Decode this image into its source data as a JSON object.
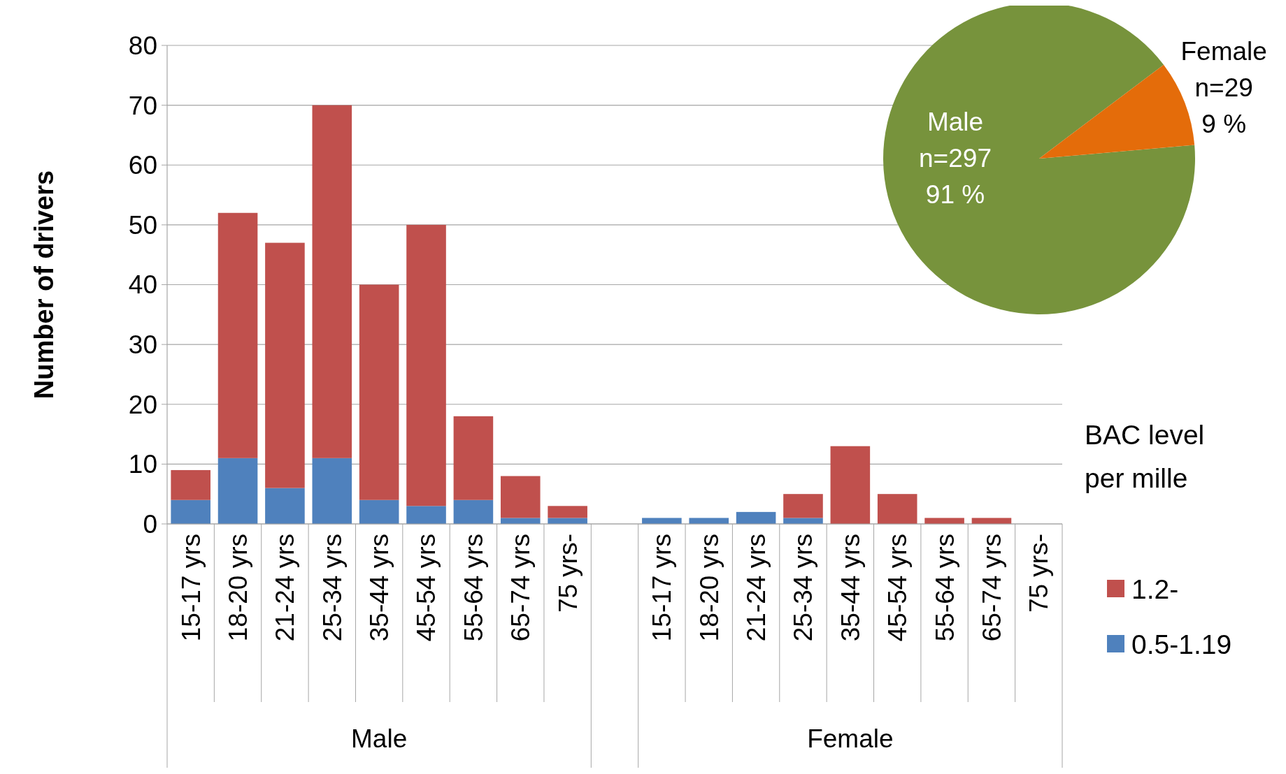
{
  "chart_data": [
    {
      "type": "bar",
      "ylabel": "Number of drivers",
      "stacked": true,
      "categories": [
        "15-17 yrs",
        "18-20 yrs",
        "21-24 yrs",
        "25-34 yrs",
        "35-44 yrs",
        "45-54 yrs",
        "55-64 yrs",
        "65-74 yrs",
        "75 yrs-",
        null,
        "15-17 yrs",
        "18-20 yrs",
        "21-24 yrs",
        "25-34 yrs",
        "35-44 yrs",
        "45-54 yrs",
        "55-64 yrs",
        "65-74 yrs",
        "75 yrs-"
      ],
      "series": [
        {
          "name": "0.5-1.19",
          "color": "#4f81bd",
          "values": [
            4,
            11,
            6,
            11,
            4,
            3,
            4,
            1,
            1,
            null,
            1,
            1,
            2,
            1,
            0,
            0,
            0,
            0,
            0
          ]
        },
        {
          "name": "1.2-",
          "color": "#c0504d",
          "values": [
            5,
            41,
            41,
            59,
            36,
            47,
            14,
            7,
            2,
            null,
            0,
            0,
            0,
            4,
            13,
            5,
            1,
            1,
            0
          ]
        }
      ],
      "ylim": [
        0,
        80
      ],
      "yticks": [
        0,
        10,
        20,
        30,
        40,
        50,
        60,
        70,
        80
      ],
      "grid": "y",
      "legend": "right",
      "legend_title": "BAC level per mille",
      "annotations": [
        "Male",
        "Female"
      ]
    },
    {
      "type": "pie",
      "categories": [
        "Male",
        "Female"
      ],
      "values": [
        297,
        29
      ],
      "colors": [
        "#77933c",
        "#e46c0a"
      ],
      "value_labels": [
        "n=297\n91 %",
        "n=29\n9 %"
      ]
    }
  ]
}
